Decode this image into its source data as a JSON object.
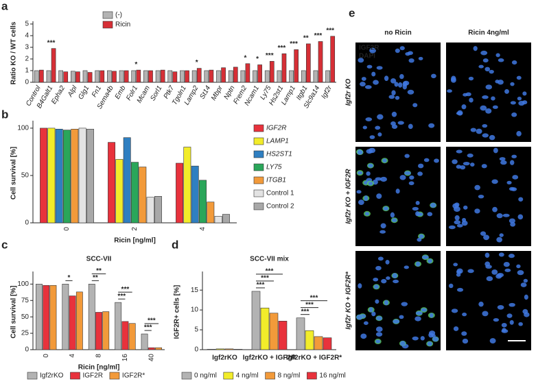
{
  "chart_data": [
    {
      "panel": "a",
      "type": "bar",
      "ylabel": "Ratio KO / WT cells",
      "categories": [
        "Control",
        "B4Galt1",
        "Epha2",
        "Alpl",
        "Glg1",
        "Fn1",
        "Sema4b",
        "Emb",
        "Folr1",
        "Mcam",
        "Sorl1",
        "Ptk7",
        "Tgoln1",
        "Lamp2",
        "St14",
        "Mbpr",
        "Nptn",
        "Frem2",
        "Ncam1",
        "Ly75",
        "Hs2st1",
        "Lamp1",
        "Itgb1",
        "Slc9a14",
        "Igf2r"
      ],
      "series": [
        {
          "name": "(-)",
          "color": "#b3b3b3",
          "values": [
            1.0,
            1.0,
            1.0,
            0.95,
            1.0,
            1.0,
            1.0,
            1.0,
            1.0,
            1.0,
            1.0,
            1.0,
            1.0,
            1.0,
            1.0,
            1.0,
            1.0,
            1.0,
            1.0,
            1.0,
            1.0,
            1.0,
            1.0,
            1.0,
            1.0
          ]
        },
        {
          "name": "Ricin",
          "color": "#d62f36",
          "values": [
            1.05,
            2.9,
            0.9,
            0.9,
            0.85,
            1.0,
            0.95,
            1.0,
            1.05,
            1.0,
            1.05,
            0.9,
            1.0,
            1.2,
            1.05,
            1.25,
            1.3,
            1.6,
            1.5,
            1.8,
            2.45,
            2.8,
            3.3,
            3.5,
            3.95
          ]
        }
      ],
      "significance": [
        null,
        "***",
        null,
        null,
        null,
        null,
        null,
        null,
        "*",
        null,
        null,
        null,
        null,
        "*",
        null,
        null,
        null,
        "*",
        "*",
        "***",
        "***",
        "***",
        "**",
        "***",
        "***"
      ],
      "ylim": [
        0,
        5
      ],
      "yticks": [
        0,
        1,
        2,
        3,
        4,
        5
      ],
      "legend": "top",
      "rotate_labels": true
    },
    {
      "panel": "b",
      "type": "bar",
      "ylabel": "Cell survival [%]",
      "xlabel": "Ricin [ng/ml]",
      "categories": [
        "0",
        "2",
        "4"
      ],
      "series": [
        {
          "name": "IGF2R",
          "color": "#e8323c",
          "values": [
            100,
            85,
            63
          ]
        },
        {
          "name": "LAMP1",
          "color": "#f2ec2a",
          "values": [
            100,
            67,
            80
          ]
        },
        {
          "name": "HS2ST1",
          "color": "#2f7fc1",
          "values": [
            99,
            90,
            60
          ]
        },
        {
          "name": "LY75",
          "color": "#2aa65a",
          "values": [
            98,
            64,
            45
          ]
        },
        {
          "name": "ITGB1",
          "color": "#f29a3a",
          "values": [
            99,
            59,
            22
          ]
        },
        {
          "name": "Control 1",
          "color": "#e3e3e3",
          "values": [
            100,
            27,
            7
          ]
        },
        {
          "name": "Control 2",
          "color": "#a8a8a8",
          "values": [
            99,
            28,
            9
          ]
        }
      ],
      "ylim": [
        0,
        105
      ],
      "yticks": [
        0,
        50,
        100
      ],
      "legend": "right",
      "rotate_labels": true
    },
    {
      "panel": "c",
      "type": "bar",
      "title": "SCC-VII",
      "ylabel": "Cell survival [%]",
      "xlabel": "Ricin [ng/ml]",
      "categories": [
        "0",
        "4",
        "8",
        "16",
        "40"
      ],
      "series": [
        {
          "name": "Igf2rKO",
          "color": "#b3b3b3",
          "values": [
            100,
            100,
            100,
            72,
            24
          ]
        },
        {
          "name": "IGF2R",
          "color": "#e8323c",
          "values": [
            98,
            82,
            57,
            43,
            3
          ]
        },
        {
          "name": "IGF2R*",
          "color": "#f29a3a",
          "values": [
            98,
            88,
            58,
            40,
            3
          ]
        }
      ],
      "brackets": [
        {
          "category": "4",
          "from": "Igf2rKO",
          "to": "IGF2R",
          "label": "*"
        },
        {
          "category": "8",
          "from": "Igf2rKO",
          "to": "IGF2R",
          "label": "**"
        },
        {
          "category": "8",
          "from": "Igf2rKO",
          "to": "IGF2R*",
          "label": "**"
        },
        {
          "category": "16",
          "from": "Igf2rKO",
          "to": "IGF2R",
          "label": "***"
        },
        {
          "category": "16",
          "from": "Igf2rKO",
          "to": "IGF2R*",
          "label": "***"
        },
        {
          "category": "40",
          "from": "Igf2rKO",
          "to": "IGF2R",
          "label": "***"
        },
        {
          "category": "40",
          "from": "Igf2rKO",
          "to": "IGF2R*",
          "label": "***"
        }
      ],
      "ylim": [
        0,
        115
      ],
      "yticks": [
        0,
        25,
        50,
        75,
        100
      ],
      "legend": "bottom",
      "rotate_labels": true
    },
    {
      "panel": "d",
      "type": "bar",
      "title": "SCC-VII mix",
      "ylabel": "IGF2R+ cells [%]",
      "categories": [
        "Igf2rKO",
        "Igf2rKO + IGF2R",
        "Igf2rKO + IGF2R*"
      ],
      "series": [
        {
          "name": "0 ng/ml",
          "color": "#b3b3b3",
          "values": [
            0.1,
            14.7,
            8.0
          ]
        },
        {
          "name": "4 ng/ml",
          "color": "#f2ec2a",
          "values": [
            0.2,
            10.5,
            4.8
          ]
        },
        {
          "name": "8 ng/ml",
          "color": "#f29a3a",
          "values": [
            0.2,
            9.2,
            3.3
          ]
        },
        {
          "name": "16 ng/ml",
          "color": "#e8323c",
          "values": [
            0.1,
            7.2,
            3.0
          ]
        }
      ],
      "brackets": [
        {
          "category": "Igf2rKO + IGF2R",
          "from": "0 ng/ml",
          "to": "4 ng/ml",
          "label": "***"
        },
        {
          "category": "Igf2rKO + IGF2R",
          "from": "0 ng/ml",
          "to": "8 ng/ml",
          "label": "***"
        },
        {
          "category": "Igf2rKO + IGF2R",
          "from": "0 ng/ml",
          "to": "16 ng/ml",
          "label": "***"
        },
        {
          "category": "Igf2rKO + IGF2R*",
          "from": "0 ng/ml",
          "to": "4 ng/ml",
          "label": "***"
        },
        {
          "category": "Igf2rKO + IGF2R*",
          "from": "0 ng/ml",
          "to": "8 ng/ml",
          "label": "***"
        },
        {
          "category": "Igf2rKO + IGF2R*",
          "from": "0 ng/ml",
          "to": "16 ng/ml",
          "label": "***"
        }
      ],
      "ylim": [
        0,
        19
      ],
      "yticks": [
        0,
        5,
        10,
        15
      ],
      "legend": "bottom",
      "rotate_labels": false
    }
  ],
  "image_panel": {
    "panel": "e",
    "columns": [
      "no Ricin",
      "Ricin 4ng/ml"
    ],
    "rows": [
      "Igf2r KO",
      "Igf2r KO + IGF2R",
      "Igf2r KO + IGF2R*"
    ],
    "channels": [
      {
        "name": "IGF2R",
        "color": "#5fd35f"
      },
      {
        "name": "DAPI",
        "color": "#3f78e0"
      }
    ]
  }
}
